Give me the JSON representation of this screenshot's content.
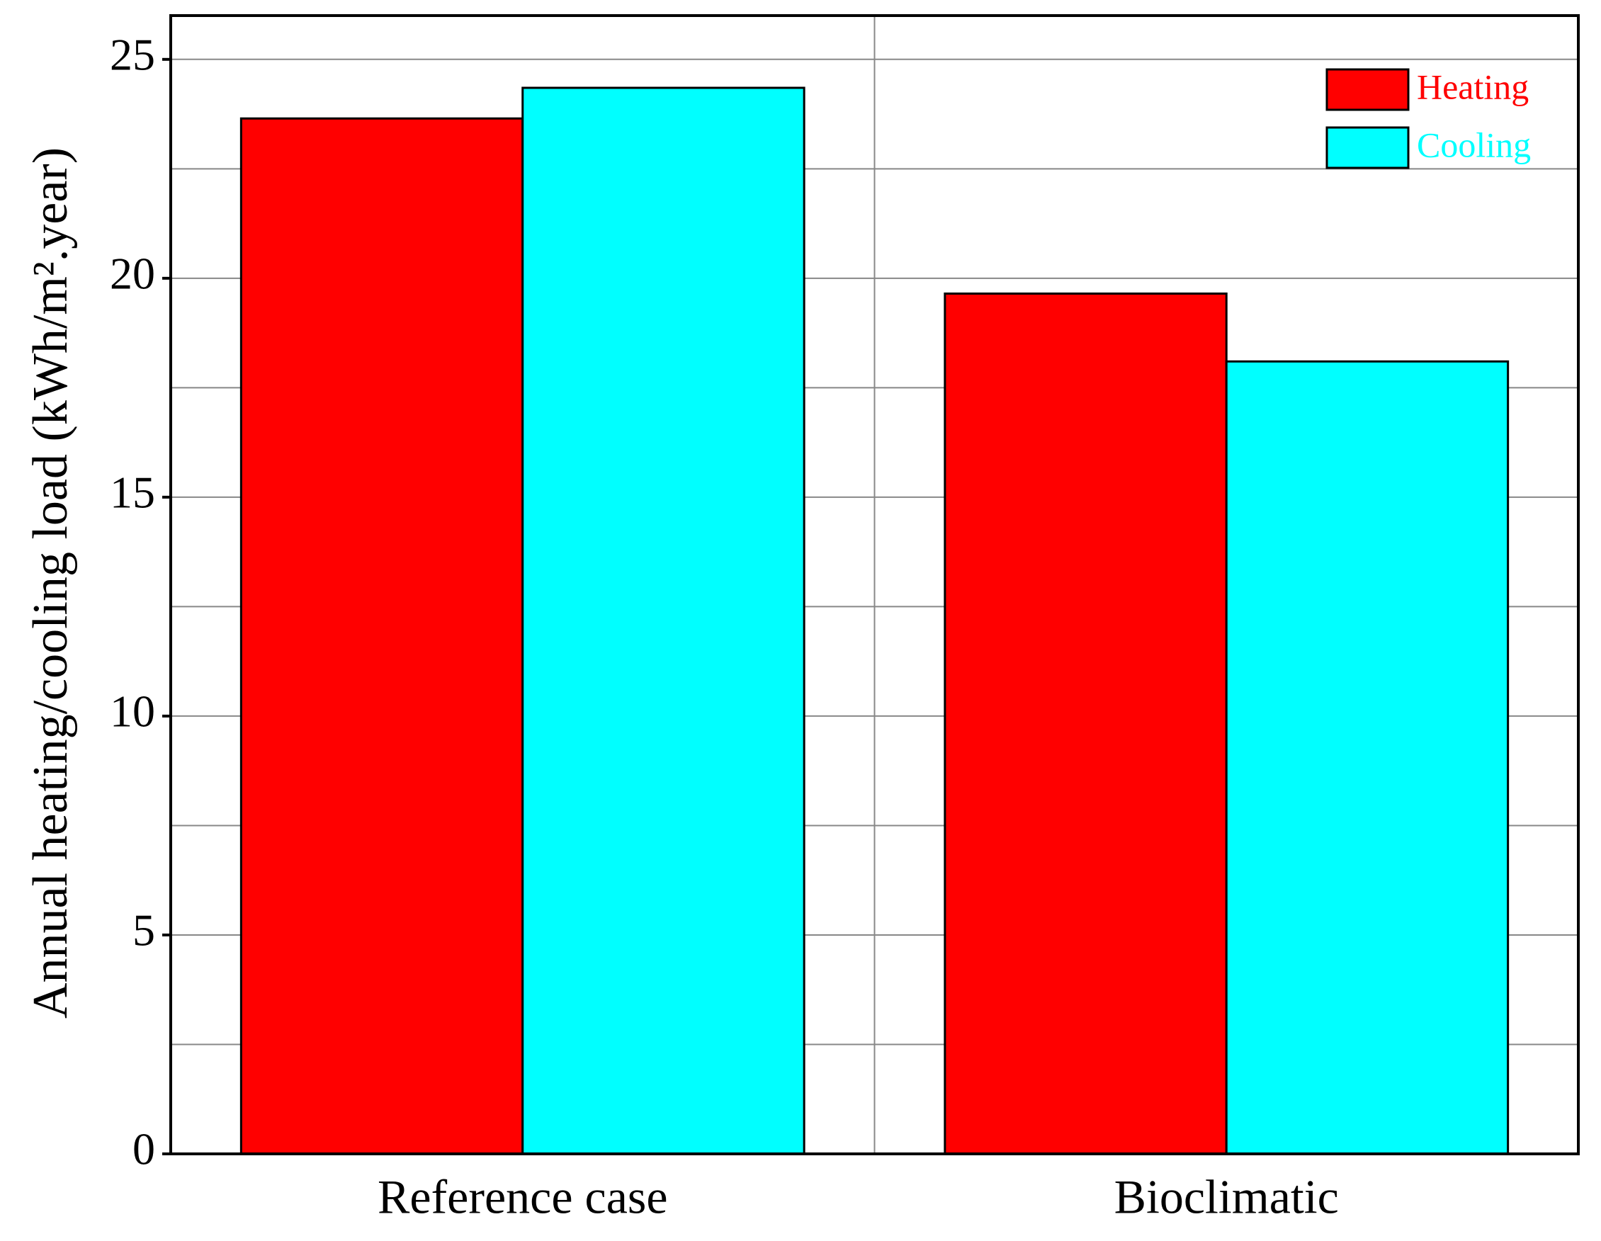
{
  "chart_data": {
    "type": "bar",
    "y_label": "Annual heating/cooling load (kWh/m².year)",
    "categories": [
      "Reference case",
      "Bioclimatic"
    ],
    "series": [
      {
        "name": "Heating",
        "color": "#ff0000",
        "values": [
          23.65,
          19.65
        ]
      },
      {
        "name": "Cooling",
        "color": "#00ffff",
        "values": [
          24.35,
          18.1
        ]
      }
    ],
    "ylim": [
      0,
      26
    ],
    "yticks": [
      0,
      5,
      10,
      15,
      20,
      25
    ],
    "minor_yticks": [
      2.5,
      7.5,
      12.5,
      17.5,
      22.5
    ],
    "grid": true,
    "legend": "upper right"
  }
}
